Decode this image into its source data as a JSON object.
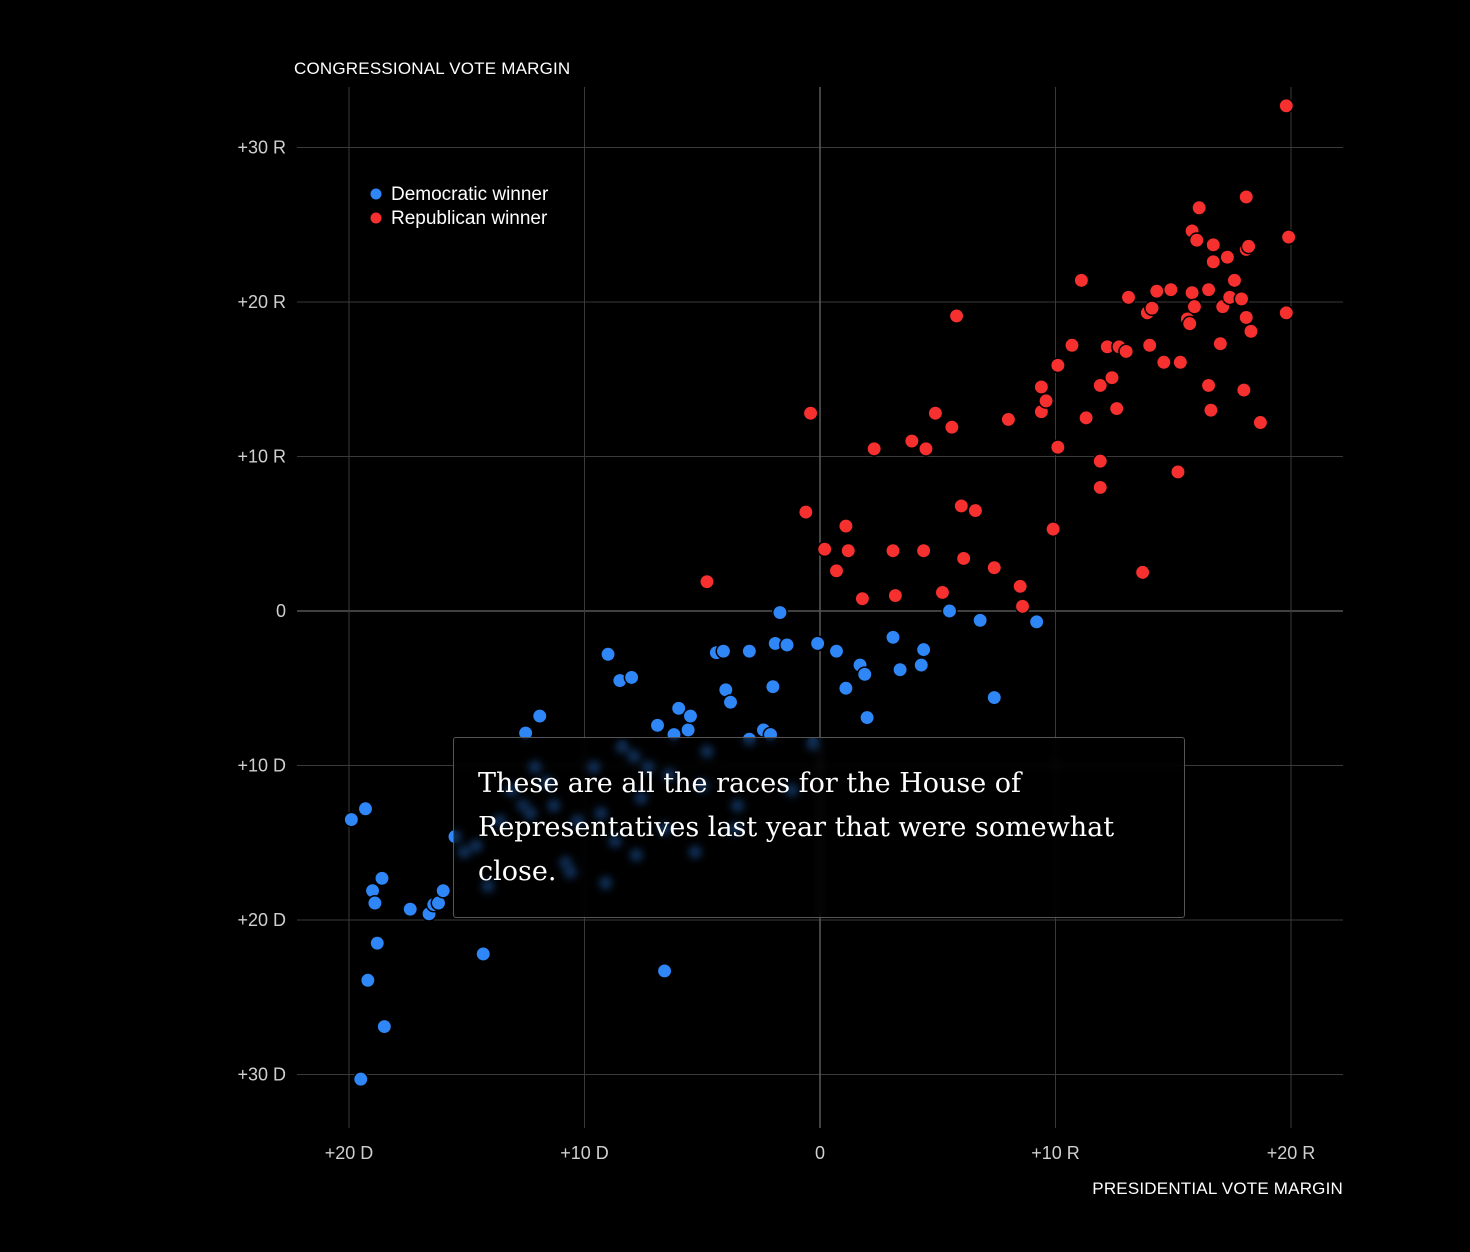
{
  "chart_data": {
    "type": "scatter",
    "ylabel": "CONGRESSIONAL VOTE MARGIN",
    "xlabel": "PRESIDENTIAL VOTE MARGIN",
    "xlim": [
      -22,
      22
    ],
    "ylim": [
      -33,
      34
    ],
    "x_ticks": [
      {
        "value": -20,
        "label": "+20 D"
      },
      {
        "value": -10,
        "label": "+10 D"
      },
      {
        "value": 0,
        "label": "0"
      },
      {
        "value": 10,
        "label": "+10 R"
      },
      {
        "value": 20,
        "label": "+20 R"
      }
    ],
    "y_ticks": [
      {
        "value": 30,
        "label": "+30 R"
      },
      {
        "value": 20,
        "label": "+20 R"
      },
      {
        "value": 10,
        "label": "+10 R"
      },
      {
        "value": 0,
        "label": "0"
      },
      {
        "value": -10,
        "label": "+10 D"
      },
      {
        "value": -20,
        "label": "+20 D"
      },
      {
        "value": -30,
        "label": "+30 D"
      }
    ],
    "grid": true,
    "legend_position": "top-left",
    "series": [
      {
        "name": "Democratic winner",
        "color": "#2f86f6",
        "points": [
          [
            -19.5,
            -30.3
          ],
          [
            -18.5,
            -26.9
          ],
          [
            -19.2,
            -23.9
          ],
          [
            -18.8,
            -21.5
          ],
          [
            -14.3,
            -22.2
          ],
          [
            -6.6,
            -23.3
          ],
          [
            -19.9,
            -13.5
          ],
          [
            -19.3,
            -12.8
          ],
          [
            -19.0,
            -18.1
          ],
          [
            -18.6,
            -17.3
          ],
          [
            -18.9,
            -18.9
          ],
          [
            -17.4,
            -19.3
          ],
          [
            -16.6,
            -19.6
          ],
          [
            -16.4,
            -19.0
          ],
          [
            -16.2,
            -18.9
          ],
          [
            -16.0,
            -18.1
          ],
          [
            -15.5,
            -14.6
          ],
          [
            -15.1,
            -15.6
          ],
          [
            -14.6,
            -15.2
          ],
          [
            -14.1,
            -17.8
          ],
          [
            -13.6,
            -13.6
          ],
          [
            -13.1,
            -11.6
          ],
          [
            -12.6,
            -12.6
          ],
          [
            -12.3,
            -13.1
          ],
          [
            -12.1,
            -10.1
          ],
          [
            -12.5,
            -7.9
          ],
          [
            -11.9,
            -6.8
          ],
          [
            -11.6,
            -11.1
          ],
          [
            -11.3,
            -12.6
          ],
          [
            -10.8,
            -16.3
          ],
          [
            -10.6,
            -16.9
          ],
          [
            -10.3,
            -13.6
          ],
          [
            -9.6,
            -10.1
          ],
          [
            -9.3,
            -13.1
          ],
          [
            -9.1,
            -17.6
          ],
          [
            -9.0,
            -2.8
          ],
          [
            -8.7,
            -14.9
          ],
          [
            -8.5,
            -4.5
          ],
          [
            -8.4,
            -8.8
          ],
          [
            -8.0,
            -4.3
          ],
          [
            -7.9,
            -9.4
          ],
          [
            -7.8,
            -15.8
          ],
          [
            -7.6,
            -12.1
          ],
          [
            -7.3,
            -10.1
          ],
          [
            -6.9,
            -7.4
          ],
          [
            -6.6,
            -14.1
          ],
          [
            -6.4,
            -10.6
          ],
          [
            -6.2,
            -8.0
          ],
          [
            -6.0,
            -6.3
          ],
          [
            -5.6,
            -7.7
          ],
          [
            -5.5,
            -6.8
          ],
          [
            -5.3,
            -15.6
          ],
          [
            -5.0,
            -11.3
          ],
          [
            -4.8,
            -9.1
          ],
          [
            -4.4,
            -2.7
          ],
          [
            -4.1,
            -2.6
          ],
          [
            -4.0,
            -5.1
          ],
          [
            -3.8,
            -5.9
          ],
          [
            -3.5,
            -12.6
          ],
          [
            -3.6,
            -14.1
          ],
          [
            -3.0,
            -8.3
          ],
          [
            -3.0,
            -2.6
          ],
          [
            -2.4,
            -7.7
          ],
          [
            -2.1,
            -8.0
          ],
          [
            -2.0,
            -4.9
          ],
          [
            -1.9,
            -2.1
          ],
          [
            -1.7,
            -0.1
          ],
          [
            -1.4,
            -2.2
          ],
          [
            -1.2,
            -11.6
          ],
          [
            -0.3,
            -8.6
          ],
          [
            -0.1,
            -2.1
          ],
          [
            0.7,
            -2.6
          ],
          [
            1.1,
            -5.0
          ],
          [
            1.7,
            -3.5
          ],
          [
            1.9,
            -4.1
          ],
          [
            2.0,
            -6.9
          ],
          [
            3.1,
            -1.7
          ],
          [
            3.4,
            -3.8
          ],
          [
            4.3,
            -3.5
          ],
          [
            4.4,
            -2.5
          ],
          [
            5.5,
            0.0
          ],
          [
            6.8,
            -0.6
          ],
          [
            7.4,
            -5.6
          ],
          [
            9.2,
            -0.7
          ]
        ]
      },
      {
        "name": "Republican winner",
        "color": "#f5302e",
        "points": [
          [
            -4.8,
            1.9
          ],
          [
            -0.6,
            6.4
          ],
          [
            -0.4,
            12.8
          ],
          [
            0.2,
            4.0
          ],
          [
            0.7,
            2.6
          ],
          [
            1.1,
            5.5
          ],
          [
            1.2,
            3.9
          ],
          [
            1.8,
            0.8
          ],
          [
            2.3,
            10.5
          ],
          [
            3.1,
            3.9
          ],
          [
            3.2,
            1.0
          ],
          [
            3.9,
            11.0
          ],
          [
            4.4,
            3.9
          ],
          [
            4.5,
            10.5
          ],
          [
            4.9,
            12.8
          ],
          [
            5.2,
            1.2
          ],
          [
            5.6,
            11.9
          ],
          [
            5.8,
            19.1
          ],
          [
            6.0,
            6.8
          ],
          [
            6.1,
            3.4
          ],
          [
            6.6,
            6.5
          ],
          [
            7.4,
            2.8
          ],
          [
            8.0,
            12.4
          ],
          [
            8.5,
            1.6
          ],
          [
            8.6,
            0.3
          ],
          [
            9.4,
            12.9
          ],
          [
            9.4,
            14.5
          ],
          [
            9.6,
            13.6
          ],
          [
            9.9,
            5.3
          ],
          [
            10.1,
            10.6
          ],
          [
            10.1,
            15.9
          ],
          [
            10.7,
            17.2
          ],
          [
            11.1,
            21.4
          ],
          [
            11.3,
            12.5
          ],
          [
            11.9,
            14.6
          ],
          [
            11.9,
            9.7
          ],
          [
            11.9,
            8.0
          ],
          [
            12.2,
            17.1
          ],
          [
            12.4,
            15.1
          ],
          [
            12.6,
            13.1
          ],
          [
            12.7,
            17.1
          ],
          [
            13.0,
            16.8
          ],
          [
            13.1,
            20.3
          ],
          [
            13.7,
            2.5
          ],
          [
            13.9,
            19.3
          ],
          [
            14.0,
            17.2
          ],
          [
            14.1,
            19.6
          ],
          [
            14.3,
            20.7
          ],
          [
            14.6,
            16.1
          ],
          [
            14.9,
            20.8
          ],
          [
            15.2,
            9.0
          ],
          [
            15.3,
            16.1
          ],
          [
            15.6,
            18.9
          ],
          [
            15.7,
            18.6
          ],
          [
            15.8,
            24.6
          ],
          [
            15.8,
            20.6
          ],
          [
            15.9,
            19.7
          ],
          [
            16.0,
            24.0
          ],
          [
            16.1,
            26.1
          ],
          [
            16.5,
            14.6
          ],
          [
            16.5,
            20.8
          ],
          [
            16.6,
            13.0
          ],
          [
            16.7,
            23.7
          ],
          [
            16.7,
            22.6
          ],
          [
            17.0,
            17.3
          ],
          [
            17.1,
            19.7
          ],
          [
            17.3,
            22.9
          ],
          [
            17.4,
            20.3
          ],
          [
            17.6,
            21.4
          ],
          [
            17.9,
            20.2
          ],
          [
            18.0,
            14.3
          ],
          [
            18.1,
            19.0
          ],
          [
            18.1,
            23.4
          ],
          [
            18.1,
            26.8
          ],
          [
            18.2,
            23.6
          ],
          [
            18.3,
            18.1
          ],
          [
            18.7,
            12.2
          ],
          [
            19.8,
            32.7
          ],
          [
            19.8,
            19.3
          ],
          [
            19.9,
            24.2
          ]
        ]
      }
    ]
  },
  "callout": {
    "text": "These are all the races for the House of Representatives last year that were somewhat close."
  }
}
